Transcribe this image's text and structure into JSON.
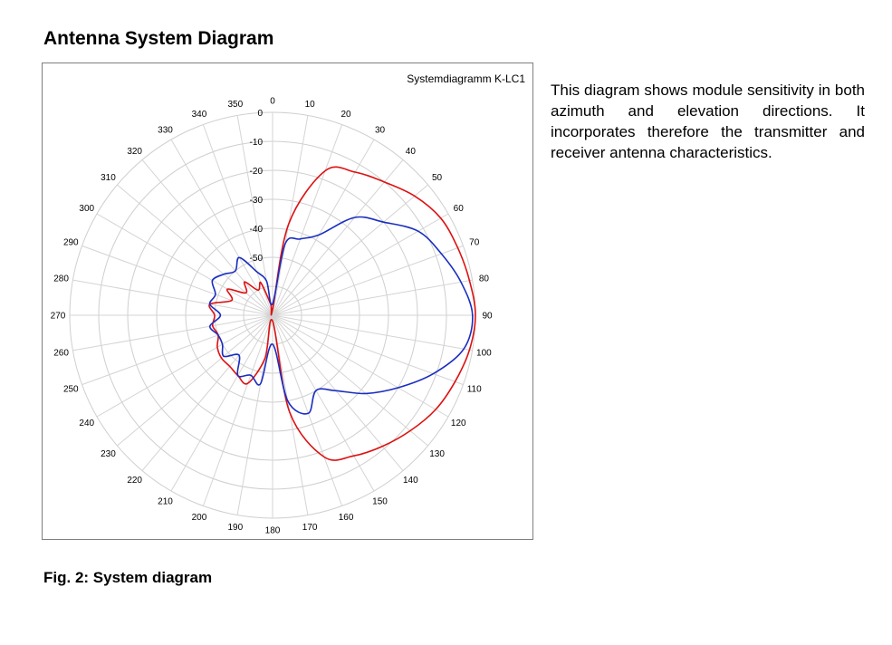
{
  "page": {
    "heading": "Antenna System Diagram",
    "description": "This diagram shows module sensitivity in both azimuth and elevation direc­tions. It incorporates therefore the transmitter and receiver antenna char­acteristics.",
    "caption": "Fig. 2: System diagram"
  },
  "chart_data": {
    "type": "polar",
    "title": "Systemdiagramm K-LC1",
    "angle_labels": [
      "0",
      "10",
      "20",
      "30",
      "40",
      "50",
      "60",
      "70",
      "80",
      "90",
      "100",
      "110",
      "120",
      "130",
      "140",
      "150",
      "160",
      "170",
      "180",
      "190",
      "200",
      "210",
      "220",
      "230",
      "240",
      "250",
      "260",
      "270",
      "280",
      "290",
      "300",
      "310",
      "320",
      "330",
      "340",
      "350"
    ],
    "radial_labels": [
      "0",
      "-10",
      "-20",
      "-30",
      "-40",
      "-50"
    ],
    "radial_range_db": [
      -70,
      0
    ],
    "grid": true,
    "legend": "none",
    "series": [
      {
        "color": "#dd1111",
        "angles": [
          0,
          10,
          20,
          30,
          40,
          50,
          60,
          70,
          80,
          90,
          100,
          110,
          120,
          130,
          140,
          150,
          160,
          170,
          180,
          190,
          200,
          210,
          220,
          230,
          240,
          250,
          260,
          270,
          280,
          290,
          300,
          310,
          320,
          330,
          340,
          350
        ],
        "values_db": [
          -68,
          -38,
          -17,
          -13,
          -10,
          -6,
          -3,
          -2,
          -1,
          0,
          -1,
          -3,
          -5,
          -8,
          -11,
          -14,
          -18,
          -36,
          -68,
          -55,
          -45,
          -46,
          -47,
          -47,
          -48,
          -50,
          -49,
          -50,
          -48,
          -55,
          -52,
          -58,
          -55,
          -60,
          -58,
          -66
        ]
      },
      {
        "color": "#1a2ec0",
        "angles": [
          0,
          10,
          20,
          30,
          40,
          50,
          60,
          70,
          80,
          90,
          100,
          110,
          120,
          130,
          140,
          150,
          160,
          170,
          180,
          190,
          200,
          210,
          220,
          230,
          240,
          250,
          260,
          270,
          280,
          290,
          300,
          310,
          320,
          330,
          340,
          350
        ],
        "values_db": [
          -66,
          -45,
          -42,
          -38,
          -26,
          -20,
          -12,
          -8,
          -4,
          -1,
          -3,
          -11,
          -20,
          -28,
          -36,
          -40,
          -34,
          -40,
          -60,
          -46,
          -48,
          -46,
          -52,
          -48,
          -50,
          -50,
          -48,
          -52,
          -48,
          -49,
          -46,
          -48,
          -50,
          -47,
          -54,
          -58
        ]
      }
    ]
  }
}
